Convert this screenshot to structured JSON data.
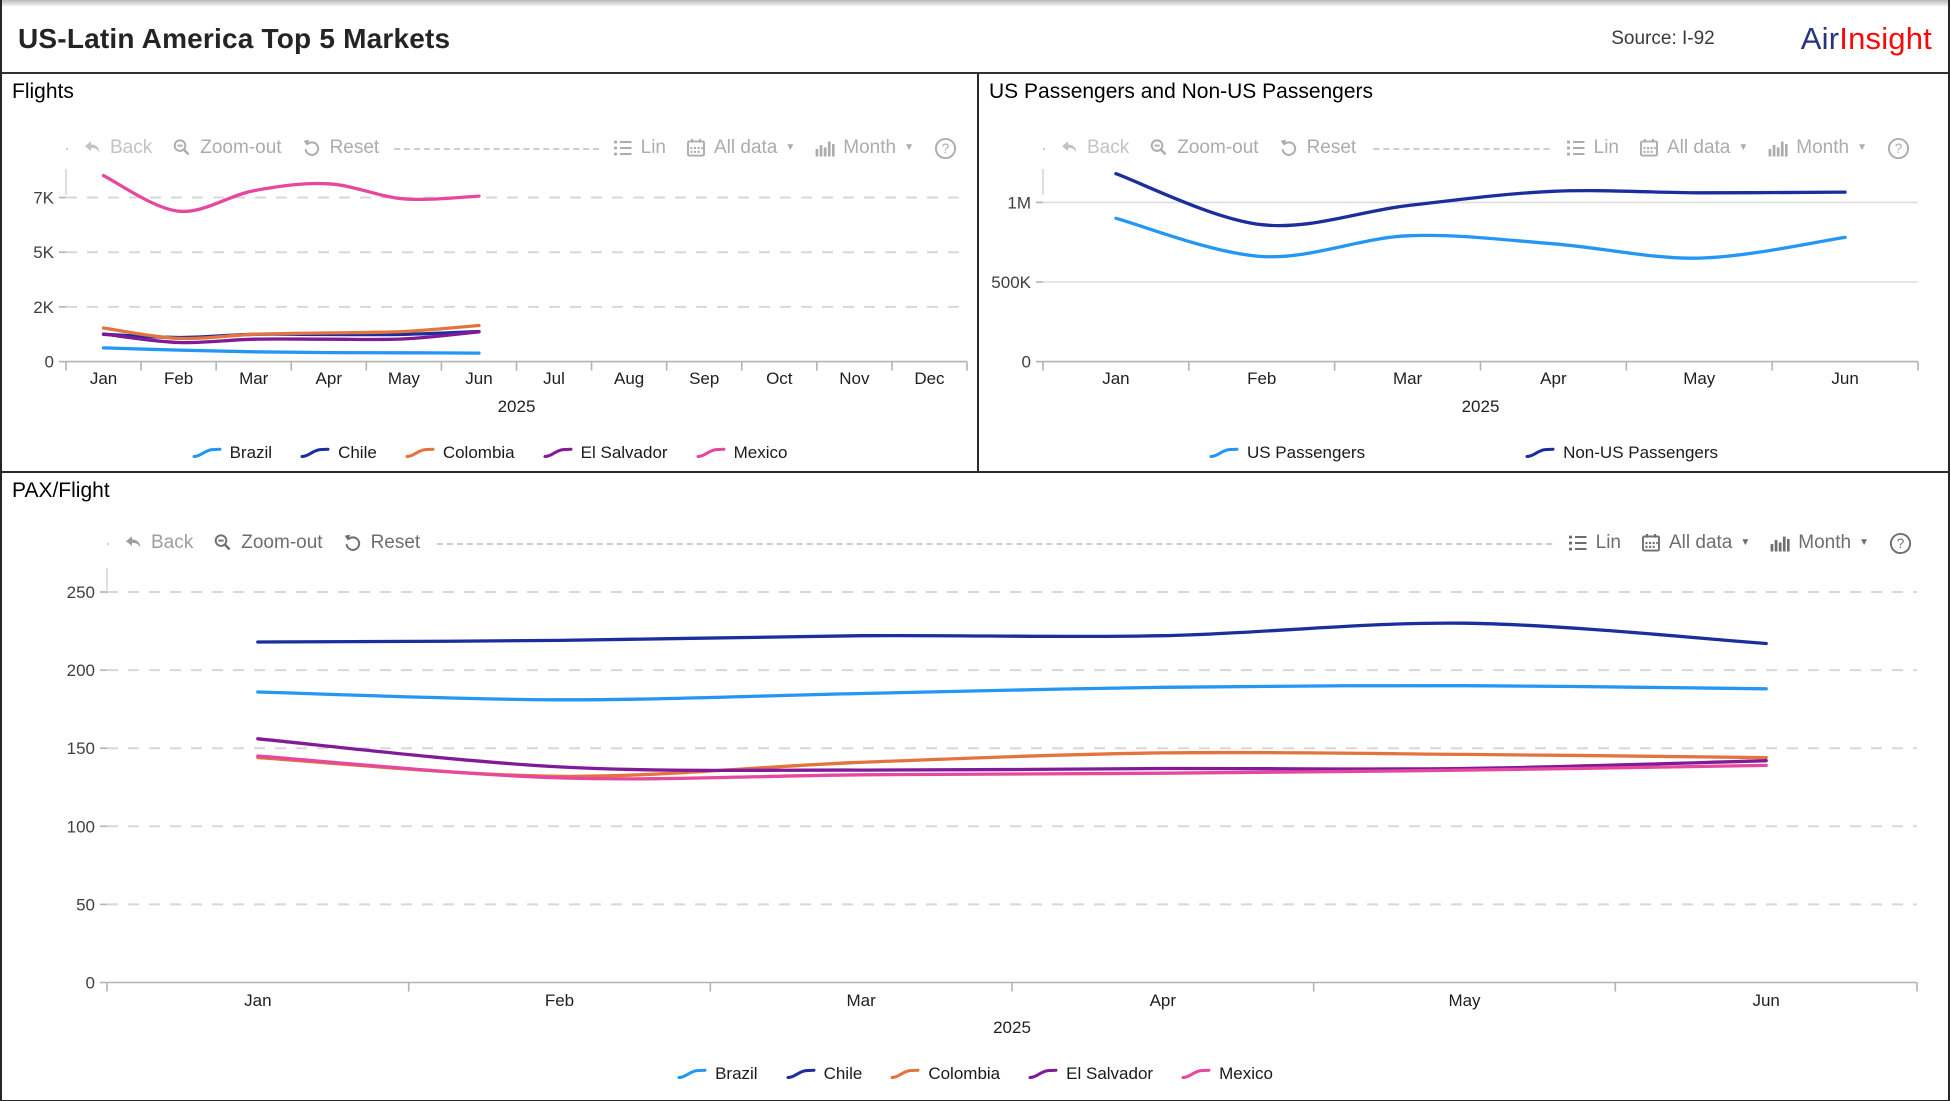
{
  "header": {
    "title": "US-Latin America Top 5 Markets",
    "source": "Source: I-92",
    "brand_air": "Air",
    "brand_insight": "Insight"
  },
  "toolbar": {
    "back": "Back",
    "zoom_out": "Zoom-out",
    "reset": "Reset",
    "lin": "Lin",
    "all_data": "All data",
    "month": "Month",
    "help": "?"
  },
  "colors": {
    "brazil": "#2497F4",
    "chile": "#1C2E9C",
    "colombia": "#E4743E",
    "el_salvador": "#801A98",
    "mexico": "#E5489D",
    "us_passengers": "#2497F4",
    "non_us_passengers": "#1C2E9C",
    "grid": "#D8D8D8",
    "axis": "#B3B3B3"
  },
  "chart_data": [
    {
      "type": "line",
      "title": "Flights",
      "year": "2025",
      "x_months": [
        "Jan",
        "Feb",
        "Mar",
        "Apr",
        "May",
        "Jun",
        "Jul",
        "Aug",
        "Sep",
        "Oct",
        "Nov",
        "Dec"
      ],
      "y_ticks": [
        0,
        2000,
        5000,
        7000
      ],
      "y_tick_labels": [
        "0",
        "2K",
        "5K",
        "7K"
      ],
      "grid_style": "dashed",
      "legend_position": "bottom",
      "series": [
        {
          "name": "Brazil",
          "color": "#2497F4",
          "values": [
            500,
            420,
            360,
            330,
            320,
            310
          ]
        },
        {
          "name": "Chile",
          "color": "#1C2E9C",
          "values": [
            1000,
            880,
            1000,
            990,
            1000,
            1100
          ]
        },
        {
          "name": "Colombia",
          "color": "#E4743E",
          "values": [
            1230,
            850,
            1000,
            1050,
            1100,
            1320
          ]
        },
        {
          "name": "El Salvador",
          "color": "#801A98",
          "values": [
            1010,
            700,
            820,
            820,
            830,
            1090
          ]
        },
        {
          "name": "Mexico",
          "color": "#E5489D",
          "values": [
            7800,
            6500,
            7250,
            7500,
            6950,
            7050
          ]
        }
      ]
    },
    {
      "type": "line",
      "title": "US Passengers and Non-US Passengers",
      "year": "2025",
      "x_months": [
        "Jan",
        "Feb",
        "Mar",
        "Apr",
        "May",
        "Jun"
      ],
      "y_ticks": [
        0,
        500000,
        1000000
      ],
      "y_tick_labels": [
        "0",
        "500K",
        "1M"
      ],
      "grid_style": "solid",
      "legend_position": "bottom",
      "series": [
        {
          "name": "US Passengers",
          "color": "#2497F4",
          "values": [
            900000,
            660000,
            790000,
            740000,
            650000,
            780000
          ]
        },
        {
          "name": "Non-US Passengers",
          "color": "#1C2E9C",
          "values": [
            1180000,
            860000,
            980000,
            1070000,
            1060000,
            1065000
          ]
        }
      ]
    },
    {
      "type": "line",
      "title": "PAX/Flight",
      "year": "2025",
      "x_months": [
        "Jan",
        "Feb",
        "Mar",
        "Apr",
        "May",
        "Jun"
      ],
      "y_ticks": [
        0,
        50,
        100,
        150,
        200,
        250
      ],
      "y_tick_labels": [
        "0",
        "50",
        "100",
        "150",
        "200",
        "250"
      ],
      "grid_style": "dashed",
      "legend_position": "bottom",
      "series": [
        {
          "name": "Brazil",
          "color": "#2497F4",
          "values": [
            186,
            181,
            185,
            189,
            190,
            188
          ]
        },
        {
          "name": "Chile",
          "color": "#1C2E9C",
          "values": [
            218,
            219,
            222,
            222,
            230,
            217
          ]
        },
        {
          "name": "Colombia",
          "color": "#E4743E",
          "values": [
            144,
            132,
            141,
            147,
            146,
            144
          ]
        },
        {
          "name": "El Salvador",
          "color": "#801A98",
          "values": [
            156,
            138,
            136,
            137,
            137,
            142
          ]
        },
        {
          "name": "Mexico",
          "color": "#E5489D",
          "values": [
            145,
            131,
            133,
            134,
            136,
            139
          ]
        }
      ]
    }
  ]
}
